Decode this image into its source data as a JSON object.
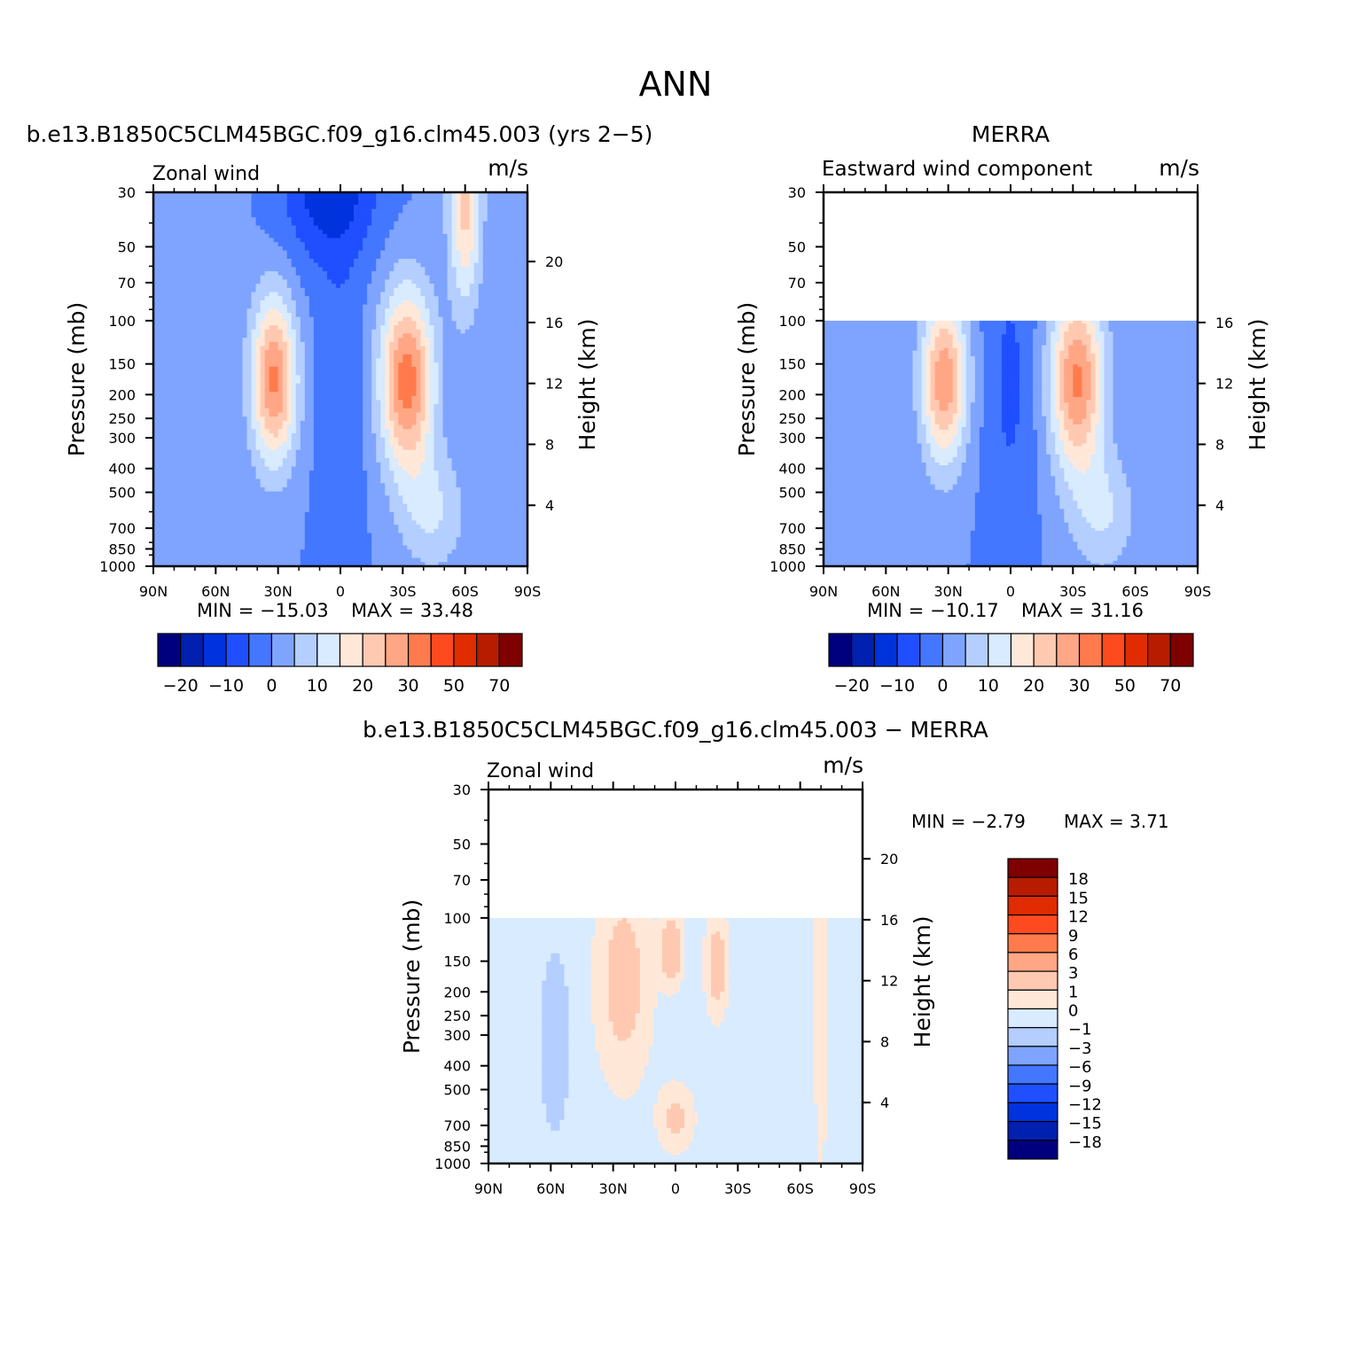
{
  "page_title": "ANN",
  "colors": {
    "palette_15": [
      "#00007f",
      "#0021b0",
      "#0033dd",
      "#1f4fff",
      "#4477ff",
      "#7ea4ff",
      "#b3ceff",
      "#d8ebff",
      "#ffe8d8",
      "#ffc9b1",
      "#ffa685",
      "#ff7b4d",
      "#ff4a1f",
      "#e02c00",
      "#b71c00",
      "#7f0000"
    ]
  },
  "chart_data": [
    {
      "type": "contour",
      "panel_title": "b.e13.B1850C5CLM45BGC.f09_g16.clm45.003 (yrs 2−5)",
      "left_label": "Zonal wind",
      "right_label": "m/s",
      "xlabel": "",
      "ylabel": "Pressure (mb)",
      "ylabel_right": "Height (km)",
      "x_ticks": [
        "90N",
        "60N",
        "30N",
        "0",
        "30S",
        "60S",
        "90S"
      ],
      "x_values": [
        90,
        60,
        30,
        0,
        -30,
        -60,
        -90
      ],
      "y_ticks": [
        "30",
        "50",
        "70",
        "100",
        "150",
        "200",
        "250",
        "300",
        "400",
        "500",
        "700",
        "850",
        "1000"
      ],
      "y_values": [
        30,
        50,
        70,
        100,
        150,
        200,
        250,
        300,
        400,
        500,
        700,
        850,
        1000
      ],
      "y_scale": "log",
      "height_ticks": [
        "20",
        "16",
        "12",
        "8",
        "4"
      ],
      "height_values": [
        20,
        16,
        12,
        8,
        4
      ],
      "ylim": [
        1000,
        30
      ],
      "data_top_pressure": 30,
      "min_label": "MIN = −15.03",
      "max_label": "MAX = 33.48",
      "min": -15.03,
      "max": 33.48,
      "colorbar_labels": [
        "−20",
        "−10",
        "0",
        "10",
        "20",
        "30",
        "50",
        "70"
      ],
      "colorbar_orientation": "horizontal"
    },
    {
      "type": "contour",
      "panel_title": "MERRA",
      "left_label": "Eastward wind component",
      "right_label": "m/s",
      "xlabel": "",
      "ylabel": "Pressure (mb)",
      "ylabel_right": "Height (km)",
      "x_ticks": [
        "90N",
        "60N",
        "30N",
        "0",
        "30S",
        "60S",
        "90S"
      ],
      "x_values": [
        90,
        60,
        30,
        0,
        -30,
        -60,
        -90
      ],
      "y_ticks": [
        "30",
        "50",
        "70",
        "100",
        "150",
        "200",
        "250",
        "300",
        "400",
        "500",
        "700",
        "850",
        "1000"
      ],
      "y_values": [
        30,
        50,
        70,
        100,
        150,
        200,
        250,
        300,
        400,
        500,
        700,
        850,
        1000
      ],
      "y_scale": "log",
      "height_ticks": [
        "16",
        "12",
        "8",
        "4"
      ],
      "height_values": [
        16,
        12,
        8,
        4
      ],
      "ylim": [
        1000,
        30
      ],
      "data_top_pressure": 100,
      "min_label": "MIN = −10.17",
      "max_label": "MAX = 31.16",
      "min": -10.17,
      "max": 31.16,
      "colorbar_labels": [
        "−20",
        "−10",
        "0",
        "10",
        "20",
        "30",
        "50",
        "70"
      ],
      "colorbar_orientation": "horizontal"
    },
    {
      "type": "contour",
      "panel_title": "b.e13.B1850C5CLM45BGC.f09_g16.clm45.003 − MERRA",
      "left_label": "Zonal wind",
      "right_label": "m/s",
      "xlabel": "",
      "ylabel": "Pressure (mb)",
      "ylabel_right": "Height (km)",
      "x_ticks": [
        "90N",
        "60N",
        "30N",
        "0",
        "30S",
        "60S",
        "90S"
      ],
      "x_values": [
        90,
        60,
        30,
        0,
        -30,
        -60,
        -90
      ],
      "y_ticks": [
        "30",
        "50",
        "70",
        "100",
        "150",
        "200",
        "250",
        "300",
        "400",
        "500",
        "700",
        "850",
        "1000"
      ],
      "y_values": [
        30,
        50,
        70,
        100,
        150,
        200,
        250,
        300,
        400,
        500,
        700,
        850,
        1000
      ],
      "y_scale": "log",
      "height_ticks": [
        "20",
        "16",
        "12",
        "8",
        "4"
      ],
      "height_values": [
        20,
        16,
        12,
        8,
        4
      ],
      "ylim": [
        1000,
        30
      ],
      "data_top_pressure": 100,
      "min_label": "MIN = −2.79",
      "max_label": "MAX = 3.71",
      "min": -2.79,
      "max": 3.71,
      "colorbar_labels": [
        "18",
        "15",
        "12",
        "9",
        "6",
        "3",
        "1",
        "0",
        "−1",
        "−3",
        "−6",
        "−9",
        "−12",
        "−15",
        "−18"
      ],
      "colorbar_orientation": "vertical"
    }
  ]
}
